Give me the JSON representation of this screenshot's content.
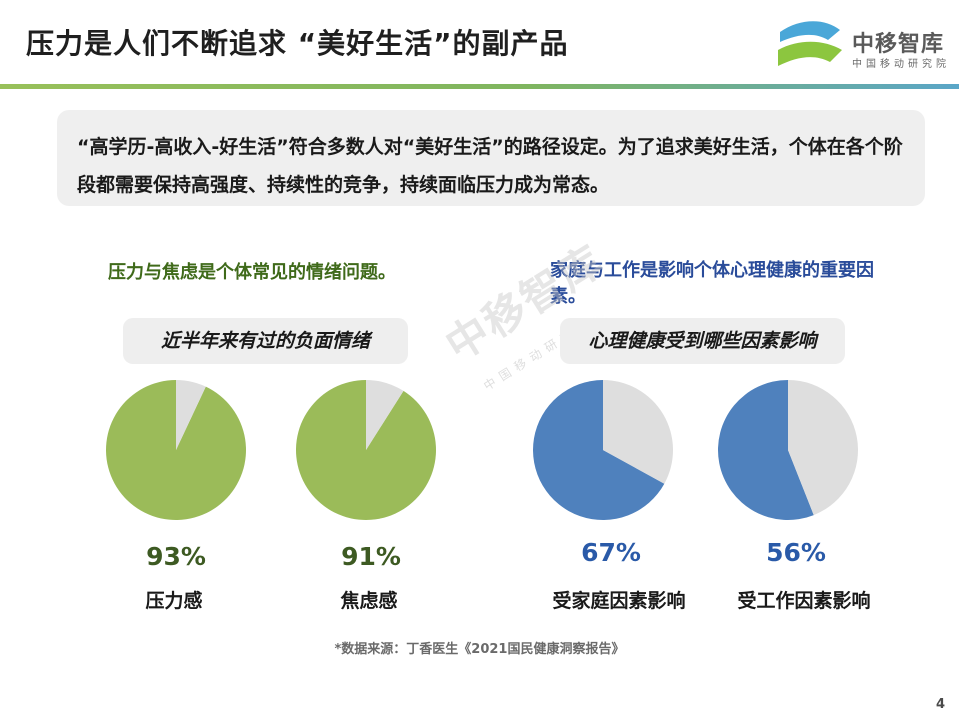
{
  "header": {
    "title": "压力是人们不断追求 “美好生活”的副产品",
    "logo_text": "中移智库",
    "logo_sub": "中国移动研究院",
    "colors": {
      "logo_top": "#4aa7d8",
      "logo_bottom": "#8cc63f",
      "top_bar": "#8bbf5a"
    }
  },
  "intro": {
    "text": "“高学历-高收入-好生活”符合多数人对“美好生活”的路径设定。为了追求美好生活，个体在各个阶段都需要保持高强度、持续性的竞争，持续面临压力成为常态。"
  },
  "left_section": {
    "heading": "压力与焦虑是个体常见的情绪问题。",
    "callout": "近半年来有过的负面情绪"
  },
  "right_section": {
    "heading": "家庭与工作是影响个体心理健康的重要因素。",
    "callout": "心理健康受到哪些因素影响"
  },
  "watermark": {
    "text": "中移智库",
    "sub": "中国移动研究院"
  },
  "chart_data": [
    {
      "type": "pie",
      "label": "压力感",
      "value_label": "93%",
      "values": [
        93,
        7
      ],
      "colors": [
        "#9bbb59",
        "#dedede"
      ]
    },
    {
      "type": "pie",
      "label": "焦虑感",
      "value_label": "91%",
      "values": [
        91,
        9
      ],
      "colors": [
        "#9bbb59",
        "#dedede"
      ]
    },
    {
      "type": "pie",
      "label": "受家庭因素影响",
      "value_label": "67%",
      "values": [
        67,
        33
      ],
      "colors": [
        "#4f81bd",
        "#dedede"
      ]
    },
    {
      "type": "pie",
      "label": "受工作因素影响",
      "value_label": "56%",
      "values": [
        56,
        44
      ],
      "colors": [
        "#4f81bd",
        "#dedede"
      ]
    }
  ],
  "footer": {
    "source": "*数据来源：丁香医生《2021国民健康洞察报告》",
    "page_number": "4"
  }
}
